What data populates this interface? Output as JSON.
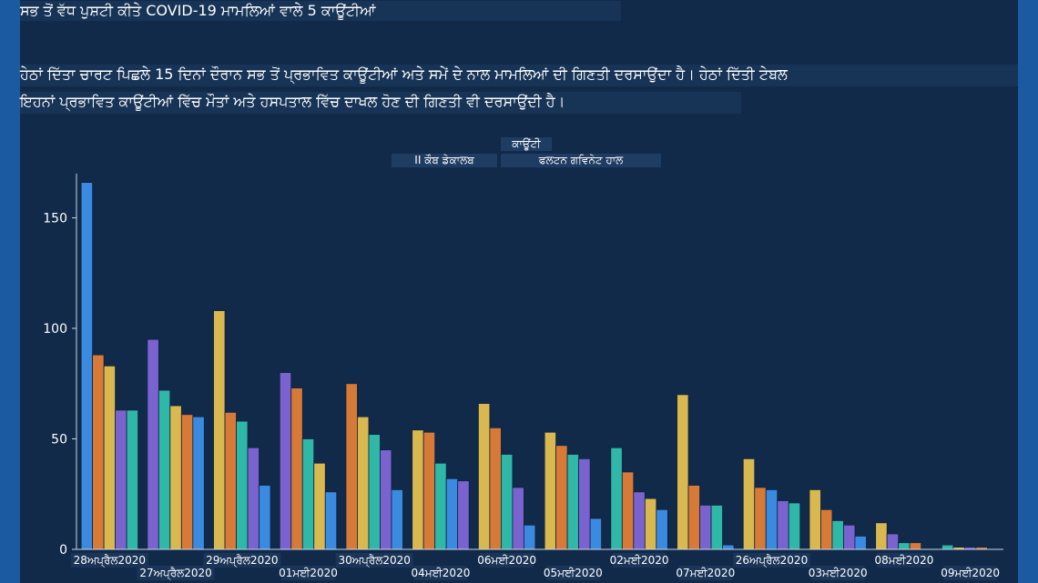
{
  "heading": "ਸਭ ਤੋਂ ਵੱਧ ਪੁਸ਼ਟੀ ਕੀਤੇ COVID-19 ਮਾਮਲਿਆਂ ਵਾਲੇ 5 ਕਾਊਂਟੀਆਂ",
  "description_line1": "ਹੇਠਾਂ ਦਿੱਤਾ ਚਾਰਟ ਪਿਛਲੇ 15 ਦਿਨਾਂ ਦੌਰਾਨ ਸਭ ਤੋਂ ਪ੍ਰਭਾਵਿਤ ਕਾਊਂਟੀਆਂ ਅਤੇ ਸਮੇਂ ਦੇ ਨਾਲ ਮਾਮਲਿਆਂ ਦੀ ਗਿਣਤੀ ਦਰਸਾਉਂਦਾ ਹੈ। ਹੇਠਾਂ ਦਿੱਤੀ ਟੇਬਲ",
  "description_line2": "ਇਹਨਾਂ ਪ੍ਰਭਾਵਿਤ ਕਾਊਂਟੀਆਂ ਵਿੱਚ ਮੌਤਾਂ ਅਤੇ ਹਸਪਤਾਲ ਵਿੱਚ ਦਾਖਲ ਹੋਣ ਦੀ ਗਿਣਤੀ ਵੀ ਦਰਸਾਉਂਦੀ ਹੈ।",
  "legend": {
    "title": "ਕਾਊਂਟੀ",
    "entries": [
      "II ਕੌਬ ਡੇਕਾਲਬ",
      "ਫਲਟਨ ਗਵਿਨੇਟ ਹਾਲ"
    ]
  },
  "colors": {
    "page_background": "#1d4f8c",
    "panel_background": "#112a4a",
    "axis": "#c9d6e6",
    "tick_text": "#ffffff",
    "bar_stroke": "#0d2240",
    "bar_palette": [
      "#3a8be0",
      "#d9b94f",
      "#d77a38",
      "#7b63cf",
      "#2fb7a8"
    ]
  },
  "chart_data": {
    "type": "bar",
    "ylim": [
      0,
      170
    ],
    "yticks": [
      0,
      50,
      100,
      150
    ],
    "legend_placement": "top-center",
    "groups": [
      {
        "label": "28ਅਪ੍ਰੈਲ2020",
        "values": [
          166,
          88,
          83,
          63,
          63
        ],
        "colors": [
          "#3a8be0",
          "#d77a38",
          "#d9b94f",
          "#7b63cf",
          "#2fb7a8"
        ]
      },
      {
        "label": "27ਅਪ੍ਰੈਲ2020",
        "values": [
          95,
          72,
          65,
          61,
          60
        ],
        "colors": [
          "#7b63cf",
          "#2fb7a8",
          "#d9b94f",
          "#d77a38",
          "#3a8be0"
        ]
      },
      {
        "label": "29ਅਪ੍ਰੈਲ2020",
        "values": [
          108,
          62,
          58,
          46,
          29
        ],
        "colors": [
          "#d9b94f",
          "#d77a38",
          "#2fb7a8",
          "#7b63cf",
          "#3a8be0"
        ]
      },
      {
        "label": "01ਮਈ2020",
        "values": [
          80,
          73,
          50,
          39,
          26
        ],
        "colors": [
          "#7b63cf",
          "#d77a38",
          "#2fb7a8",
          "#d9b94f",
          "#3a8be0"
        ]
      },
      {
        "label": "30ਅਪ੍ਰੈਲ2020",
        "values": [
          75,
          60,
          52,
          45,
          27
        ],
        "colors": [
          "#d77a38",
          "#d9b94f",
          "#2fb7a8",
          "#7b63cf",
          "#3a8be0"
        ]
      },
      {
        "label": "04ਮਈ2020",
        "values": [
          54,
          53,
          39,
          32,
          31
        ],
        "colors": [
          "#d9b94f",
          "#d77a38",
          "#2fb7a8",
          "#3a8be0",
          "#7b63cf"
        ]
      },
      {
        "label": "06ਮਈ2020",
        "values": [
          66,
          55,
          43,
          28,
          11
        ],
        "colors": [
          "#d9b94f",
          "#d77a38",
          "#2fb7a8",
          "#7b63cf",
          "#3a8be0"
        ]
      },
      {
        "label": "05ਮਈ2020",
        "values": [
          53,
          47,
          43,
          41,
          14
        ],
        "colors": [
          "#d9b94f",
          "#d77a38",
          "#2fb7a8",
          "#7b63cf",
          "#3a8be0"
        ]
      },
      {
        "label": "02ਮਈ2020",
        "values": [
          46,
          35,
          26,
          23,
          18
        ],
        "colors": [
          "#2fb7a8",
          "#d77a38",
          "#7b63cf",
          "#d9b94f",
          "#3a8be0"
        ]
      },
      {
        "label": "07ਮਈ2020",
        "values": [
          70,
          29,
          20,
          20,
          2
        ],
        "colors": [
          "#d9b94f",
          "#d77a38",
          "#7b63cf",
          "#2fb7a8",
          "#3a8be0"
        ]
      },
      {
        "label": "26ਅਪ੍ਰੈਲ2020",
        "values": [
          41,
          28,
          27,
          22,
          21
        ],
        "colors": [
          "#d9b94f",
          "#d77a38",
          "#3a8be0",
          "#7b63cf",
          "#2fb7a8"
        ]
      },
      {
        "label": "03ਮਈ2020",
        "values": [
          27,
          18,
          13,
          11,
          6
        ],
        "colors": [
          "#d9b94f",
          "#d77a38",
          "#2fb7a8",
          "#7b63cf",
          "#3a8be0"
        ]
      },
      {
        "label": "08ਮਈ2020",
        "values": [
          12,
          7,
          3,
          3,
          0
        ],
        "colors": [
          "#d9b94f",
          "#7b63cf",
          "#2fb7a8",
          "#d77a38",
          "#3a8be0"
        ]
      },
      {
        "label": "09ਮਈ2020",
        "values": [
          2,
          1,
          1,
          1,
          0
        ],
        "colors": [
          "#2fb7a8",
          "#d9b94f",
          "#7b63cf",
          "#d77a38",
          "#3a8be0"
        ]
      }
    ]
  }
}
